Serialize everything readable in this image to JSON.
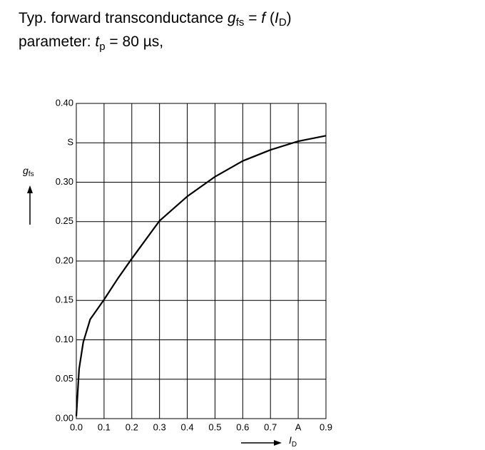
{
  "chart_data": {
    "type": "line",
    "title": [
      "Typ. forward transconductance ",
      "g",
      "fs",
      " = ",
      "f",
      " (",
      "I",
      "D",
      ")"
    ],
    "subtitle": [
      "parameter: ",
      "t",
      "p",
      " = 80 µs,"
    ],
    "y_label": [
      "g",
      "fs"
    ],
    "x_label": [
      "I",
      "D"
    ],
    "x": [
      0,
      0.01,
      0.025,
      0.05,
      0.1,
      0.15,
      0.2,
      0.3,
      0.4,
      0.5,
      0.6,
      0.7,
      0.8,
      0.9
    ],
    "values": [
      0.003,
      0.063,
      0.097,
      0.126,
      0.151,
      0.178,
      0.203,
      0.251,
      0.282,
      0.307,
      0.327,
      0.341,
      0.352,
      0.359
    ],
    "color": "#000000",
    "xlim": [
      0,
      0.9
    ],
    "ylim": [
      0,
      0.4
    ],
    "xticks": [
      {
        "value": 0,
        "label": "0.0"
      },
      {
        "value": 0.1,
        "label": "0.1"
      },
      {
        "value": 0.2,
        "label": "0.2"
      },
      {
        "value": 0.3,
        "label": "0.3"
      },
      {
        "value": 0.4,
        "label": "0.4"
      },
      {
        "value": 0.5,
        "label": "0.5"
      },
      {
        "value": 0.6,
        "label": "0.6"
      },
      {
        "value": 0.7,
        "label": "0.7"
      },
      {
        "value": 0.8,
        "label": "A"
      },
      {
        "value": 0.9,
        "label": "0.9"
      }
    ],
    "yticks": [
      {
        "value": 0,
        "label": "0.00"
      },
      {
        "value": 0.05,
        "label": "0.05"
      },
      {
        "value": 0.1,
        "label": "0.10"
      },
      {
        "value": 0.15,
        "label": "0.15"
      },
      {
        "value": 0.2,
        "label": "0.20"
      },
      {
        "value": 0.25,
        "label": "0.25"
      },
      {
        "value": 0.3,
        "label": "0.30"
      },
      {
        "value": 0.35,
        "label": "S"
      },
      {
        "value": 0.4,
        "label": "0.40"
      }
    ],
    "grid": true
  }
}
